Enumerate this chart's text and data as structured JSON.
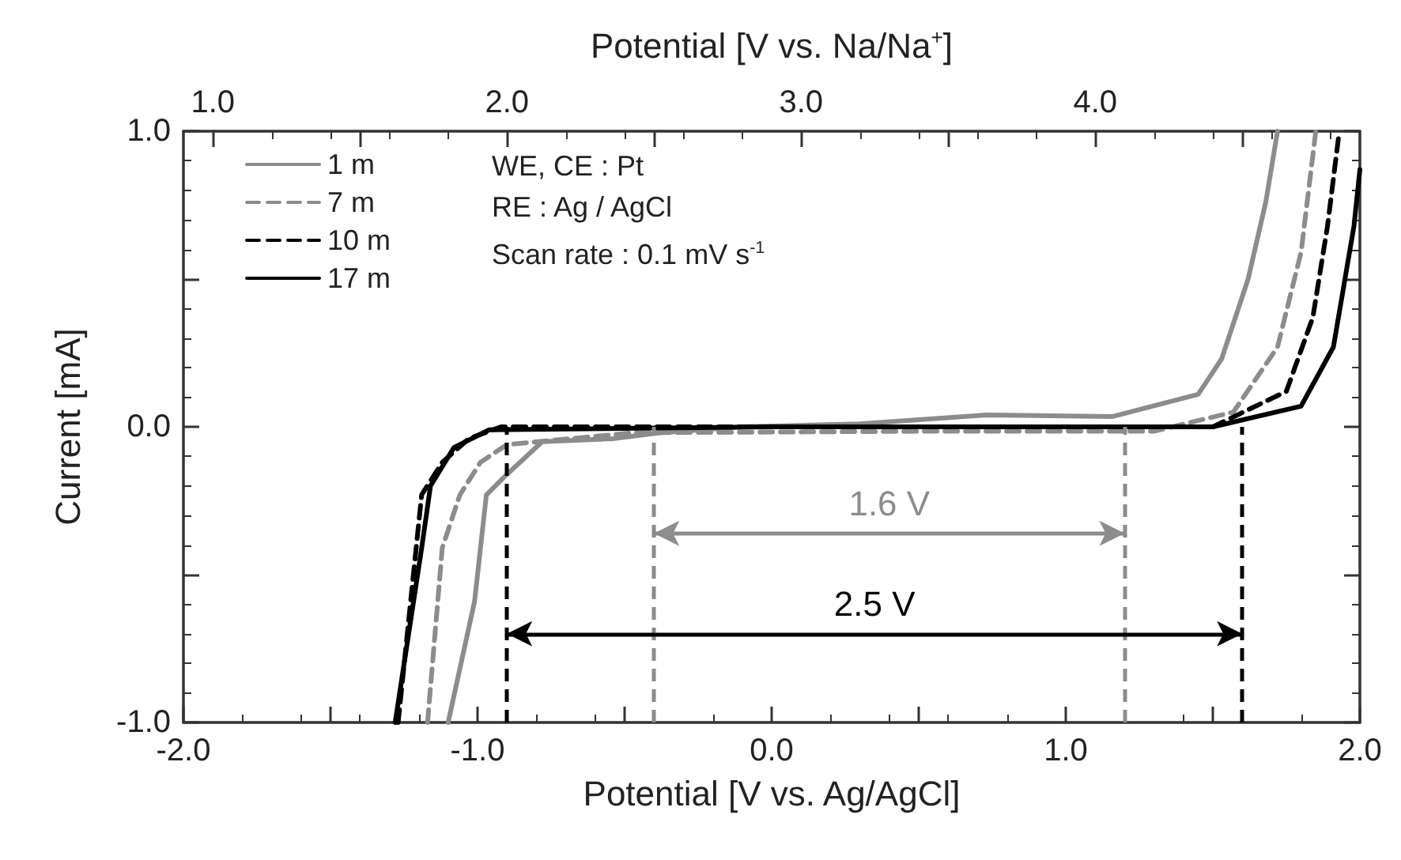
{
  "chart_data": {
    "type": "line",
    "xlabel": "Potential [V vs. Ag/AgCl]",
    "x2label": "Potential [V vs. Na/Na$^{+}$]",
    "ylabel": "Current [mA]",
    "xlim": [
      -2.0,
      2.0
    ],
    "xticks": [
      {
        "value": -2.0,
        "label": "-2.0"
      },
      {
        "value": -1.5,
        "label": null
      },
      {
        "value": -1.0,
        "label": "-1.0"
      },
      {
        "value": -0.5,
        "label": null
      },
      {
        "value": 0.0,
        "label": "0.0"
      },
      {
        "value": 0.5,
        "label": null
      },
      {
        "value": 1.0,
        "label": "1.0"
      },
      {
        "value": 1.5,
        "label": null
      },
      {
        "value": 2.0,
        "label": "2.0"
      }
    ],
    "x2lim": [
      0.9,
      4.9
    ],
    "x2ticks": [
      {
        "value": 1.0,
        "label": "1.0"
      },
      {
        "value": 1.5,
        "label": null
      },
      {
        "value": 2.0,
        "label": "2.0"
      },
      {
        "value": 2.5,
        "label": null
      },
      {
        "value": 3.0,
        "label": "3.0"
      },
      {
        "value": 3.5,
        "label": null
      },
      {
        "value": 4.0,
        "label": "4.0"
      },
      {
        "value": 4.5,
        "label": null
      }
    ],
    "ylim": [
      -1.0,
      1.0
    ],
    "yticks": [
      {
        "value": -1.0,
        "label": "-1.0"
      },
      {
        "value": -0.5,
        "label": null
      },
      {
        "value": 0.0,
        "label": "0.0"
      },
      {
        "value": 0.5,
        "label": null
      },
      {
        "value": 1.0,
        "label": "1.0"
      }
    ],
    "series": [
      {
        "name": "1 m",
        "color": "#8c8c8c",
        "line_style": "solid",
        "x": [
          -1.1,
          -1.01,
          -0.97,
          -0.91,
          -0.78,
          -0.54,
          -0.38,
          -0.1,
          0.3,
          0.73,
          1.16,
          1.45,
          1.53,
          1.62,
          1.68,
          1.72
        ],
        "values": [
          -1.0,
          -0.59,
          -0.23,
          -0.17,
          -0.05,
          -0.04,
          -0.02,
          0.0,
          0.01,
          0.04,
          0.035,
          0.11,
          0.23,
          0.5,
          0.76,
          1.0
        ]
      },
      {
        "name": "7 m",
        "color": "#8c8c8c",
        "line_style": "dashed",
        "x": [
          -1.17,
          -1.12,
          -1.06,
          -0.99,
          -0.9,
          -0.47,
          0.5,
          1.3,
          1.57,
          1.72,
          1.8,
          1.85
        ],
        "values": [
          -1.0,
          -0.41,
          -0.23,
          -0.12,
          -0.06,
          -0.02,
          -0.015,
          -0.015,
          0.05,
          0.27,
          0.59,
          1.0
        ]
      },
      {
        "name": "10 m",
        "color": "#000000",
        "line_style": "dashed",
        "x": [
          -1.27,
          -1.19,
          -1.12,
          -1.03,
          -0.92,
          0.0,
          1.5,
          1.75,
          1.84,
          1.89,
          1.93
        ],
        "values": [
          -1.0,
          -0.23,
          -0.12,
          -0.04,
          0.0,
          0.0,
          0.0,
          0.12,
          0.37,
          0.68,
          1.0
        ]
      },
      {
        "name": "17 m",
        "color": "#000000",
        "line_style": "solid",
        "x": [
          -1.28,
          -1.19,
          -1.16,
          -1.08,
          -0.96,
          0.0,
          1.5,
          1.8,
          1.91,
          1.98,
          2.0
        ],
        "values": [
          -1.0,
          -0.41,
          -0.2,
          -0.07,
          -0.01,
          0.0,
          0.0,
          0.07,
          0.27,
          0.68,
          0.87
        ]
      }
    ],
    "ref_lines": [
      {
        "axis": "x",
        "value": -0.4,
        "color": "#8c8c8c",
        "line_style": "dashed"
      },
      {
        "axis": "x",
        "value": 1.2,
        "color": "#8c8c8c",
        "line_style": "dashed"
      },
      {
        "axis": "x",
        "value": -0.9,
        "color": "#000000",
        "line_style": "dashed"
      },
      {
        "axis": "x",
        "value": 1.6,
        "color": "#000000",
        "line_style": "dashed"
      }
    ],
    "annotations": [
      "1.6 V",
      "2.5 V",
      "WE, CE : Pt",
      "RE : Ag / AgCl",
      "Scan rate : 0.1 mV s$^{-1}$"
    ],
    "legend": "top left",
    "marker": "none",
    "grid": false
  }
}
